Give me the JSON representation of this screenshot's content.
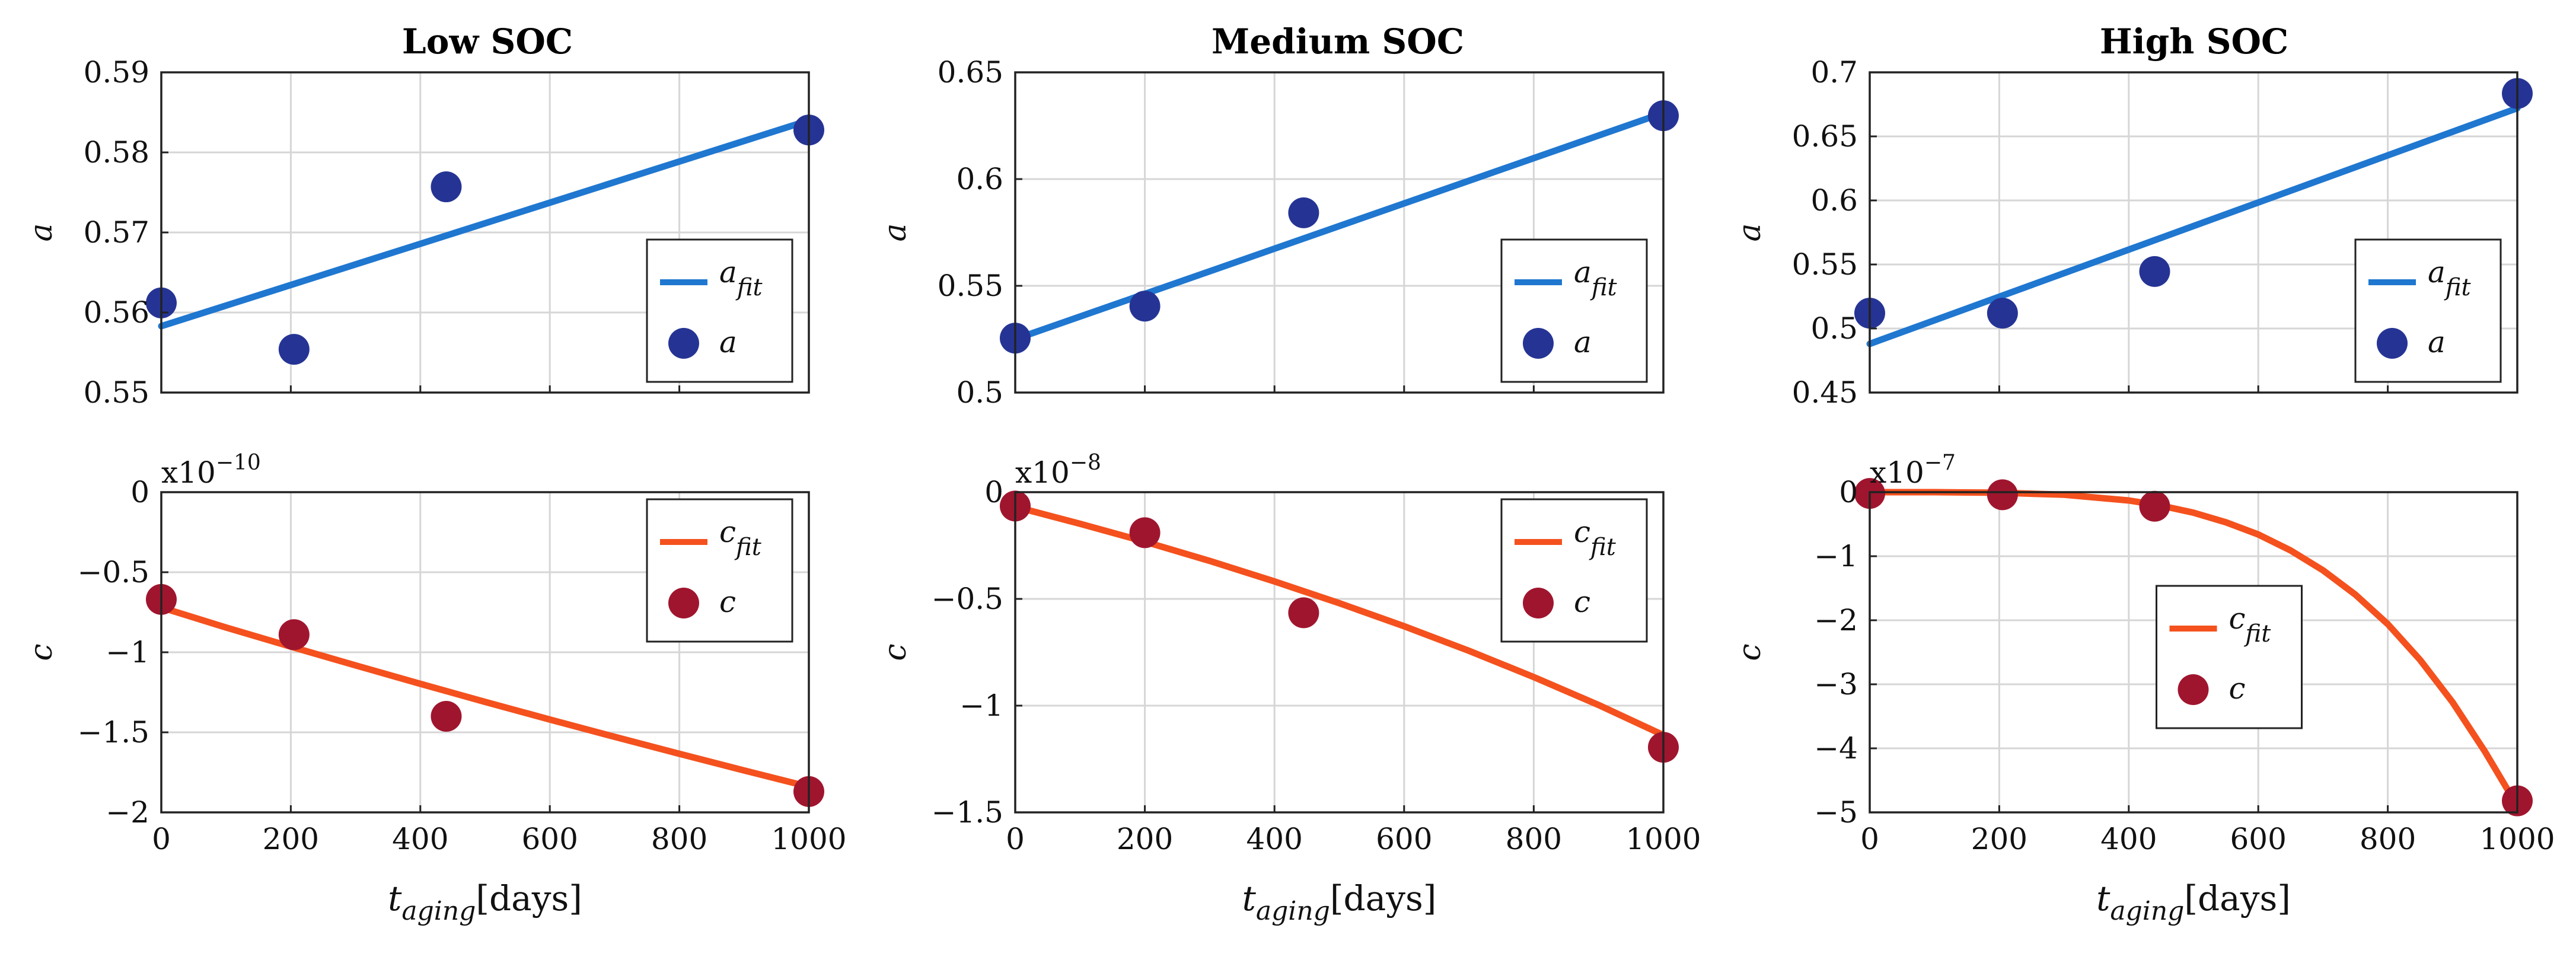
{
  "chart_data": [
    {
      "type": "line",
      "panel": "top-left",
      "title": "Low SOC",
      "xlabel": "",
      "ylabel": "a",
      "xlim": [
        0,
        1000
      ],
      "ylim": [
        0.55,
        0.59
      ],
      "x_ticks": [
        0,
        200,
        400,
        600,
        800,
        1000
      ],
      "y_ticks": [
        0.55,
        0.56,
        0.57,
        0.58,
        0.59
      ],
      "y_tick_labels": [
        "0.55",
        "0.56",
        "0.57",
        "0.58",
        "0.59"
      ],
      "show_x_tick_labels": false,
      "exponent_label": null,
      "legend": {
        "position": "bottom-right",
        "fit_label": "a",
        "fit_sub": "fit",
        "point_label": "a"
      },
      "fit": {
        "name": "a_fit",
        "color": "#1f77d0",
        "x": [
          0,
          1000
        ],
        "y": [
          0.5583,
          0.584
        ]
      },
      "points": {
        "name": "a",
        "color": "#253494",
        "x": [
          0,
          205,
          440,
          1000
        ],
        "y": [
          0.5612,
          0.5554,
          0.5757,
          0.5828
        ]
      }
    },
    {
      "type": "line",
      "panel": "top-middle",
      "title": "Medium SOC",
      "xlabel": "",
      "ylabel": "a",
      "xlim": [
        0,
        1000
      ],
      "ylim": [
        0.5,
        0.65
      ],
      "x_ticks": [
        0,
        200,
        400,
        600,
        800,
        1000
      ],
      "y_ticks": [
        0.5,
        0.55,
        0.6,
        0.65
      ],
      "y_tick_labels": [
        "0.5",
        "0.55",
        "0.6",
        "0.65"
      ],
      "show_x_tick_labels": false,
      "exponent_label": null,
      "legend": {
        "position": "bottom-right",
        "fit_label": "a",
        "fit_sub": "fit",
        "point_label": "a"
      },
      "fit": {
        "name": "a_fit",
        "color": "#1f77d0",
        "x": [
          0,
          1000
        ],
        "y": [
          0.525,
          0.631
        ]
      },
      "points": {
        "name": "a",
        "color": "#253494",
        "x": [
          0,
          200,
          445,
          1000
        ],
        "y": [
          0.5255,
          0.5405,
          0.5842,
          0.6297
        ]
      }
    },
    {
      "type": "line",
      "panel": "top-right",
      "title": "High SOC",
      "xlabel": "",
      "ylabel": "a",
      "xlim": [
        0,
        1000
      ],
      "ylim": [
        0.45,
        0.7
      ],
      "x_ticks": [
        0,
        200,
        400,
        600,
        800,
        1000
      ],
      "y_ticks": [
        0.45,
        0.5,
        0.55,
        0.6,
        0.65,
        0.7
      ],
      "y_tick_labels": [
        "0.45",
        "0.5",
        "0.55",
        "0.6",
        "0.65",
        "0.7"
      ],
      "show_x_tick_labels": false,
      "exponent_label": null,
      "legend": {
        "position": "bottom-right",
        "fit_label": "a",
        "fit_sub": "fit",
        "point_label": "a"
      },
      "fit": {
        "name": "a_fit",
        "color": "#1f77d0",
        "x": [
          0,
          1000
        ],
        "y": [
          0.488,
          0.672
        ]
      },
      "points": {
        "name": "a",
        "color": "#253494",
        "x": [
          0,
          205,
          440,
          1000
        ],
        "y": [
          0.512,
          0.512,
          0.5445,
          0.6835
        ]
      }
    },
    {
      "type": "line",
      "panel": "bottom-left",
      "title": "",
      "xlabel": "t_aging[days]",
      "ylabel": "c",
      "xlim": [
        0,
        1000
      ],
      "ylim": [
        -2,
        0
      ],
      "x_ticks": [
        0,
        200,
        400,
        600,
        800,
        1000
      ],
      "y_ticks": [
        -2,
        -1.5,
        -1,
        -0.5,
        0
      ],
      "y_tick_labels": [
        "−2",
        "−1.5",
        "−1",
        "−0.5",
        "0"
      ],
      "show_x_tick_labels": true,
      "exponent_label": {
        "base": "x10",
        "power": "−10"
      },
      "legend": {
        "position": "top-right",
        "fit_label": "c",
        "fit_sub": "fit",
        "point_label": "c"
      },
      "fit": {
        "name": "c_fit",
        "color": "#f4511e",
        "x": [
          0,
          100,
          200,
          300,
          400,
          500,
          600,
          700,
          800,
          900,
          1000
        ],
        "y": [
          -0.72,
          -0.845,
          -0.965,
          -1.082,
          -1.197,
          -1.31,
          -1.42,
          -1.528,
          -1.634,
          -1.738,
          -1.84
        ]
      },
      "points": {
        "name": "c",
        "color": "#a0152e",
        "x": [
          0,
          205,
          440,
          1000
        ],
        "y": [
          -0.67,
          -0.89,
          -1.4,
          -1.87
        ]
      }
    },
    {
      "type": "line",
      "panel": "bottom-middle",
      "title": "",
      "xlabel": "t_aging[days]",
      "ylabel": "c",
      "xlim": [
        0,
        1000
      ],
      "ylim": [
        -1.5,
        0
      ],
      "x_ticks": [
        0,
        200,
        400,
        600,
        800,
        1000
      ],
      "y_ticks": [
        -1.5,
        -1,
        -0.5,
        0
      ],
      "y_tick_labels": [
        "−1.5",
        "−1",
        "−0.5",
        "0"
      ],
      "show_x_tick_labels": true,
      "exponent_label": {
        "base": "x10",
        "power": "−8"
      },
      "legend": {
        "position": "top-right",
        "fit_label": "c",
        "fit_sub": "fit",
        "point_label": "c"
      },
      "fit": {
        "name": "c_fit",
        "color": "#f4511e",
        "x": [
          0,
          100,
          200,
          300,
          400,
          500,
          600,
          700,
          800,
          900,
          1000
        ],
        "y": [
          -0.068,
          -0.148,
          -0.232,
          -0.322,
          -0.418,
          -0.52,
          -0.628,
          -0.743,
          -0.866,
          -0.997,
          -1.138
        ]
      },
      "points": {
        "name": "c",
        "color": "#a0152e",
        "x": [
          0,
          200,
          445,
          1000
        ],
        "y": [
          -0.065,
          -0.19,
          -0.565,
          -1.195
        ]
      }
    },
    {
      "type": "line",
      "panel": "bottom-right",
      "title": "",
      "xlabel": "t_aging[days]",
      "ylabel": "c",
      "xlim": [
        0,
        1000
      ],
      "ylim": [
        -5,
        0
      ],
      "x_ticks": [
        0,
        200,
        400,
        600,
        800,
        1000
      ],
      "y_ticks": [
        -5,
        -4,
        -3,
        -2,
        -1,
        0
      ],
      "y_tick_labels": [
        "−5",
        "−4",
        "−3",
        "−2",
        "−1",
        "0"
      ],
      "show_x_tick_labels": true,
      "exponent_label": {
        "base": "x10",
        "power": "−7"
      },
      "legend": {
        "position": "bottom-center",
        "fit_label": "c",
        "fit_sub": "fit",
        "point_label": "c"
      },
      "fit": {
        "name": "c_fit",
        "color": "#f4511e",
        "x": [
          0,
          100,
          200,
          300,
          400,
          450,
          500,
          550,
          600,
          650,
          700,
          750,
          800,
          850,
          900,
          950,
          1000
        ],
        "y": [
          0,
          0,
          -0.008,
          -0.04,
          -0.13,
          -0.21,
          -0.32,
          -0.47,
          -0.66,
          -0.91,
          -1.22,
          -1.6,
          -2.06,
          -2.62,
          -3.28,
          -4.05,
          -4.9
        ]
      },
      "points": {
        "name": "c",
        "color": "#a0152e",
        "x": [
          0,
          205,
          440,
          1000
        ],
        "y": [
          -0.02,
          -0.04,
          -0.22,
          -4.82
        ]
      }
    }
  ]
}
